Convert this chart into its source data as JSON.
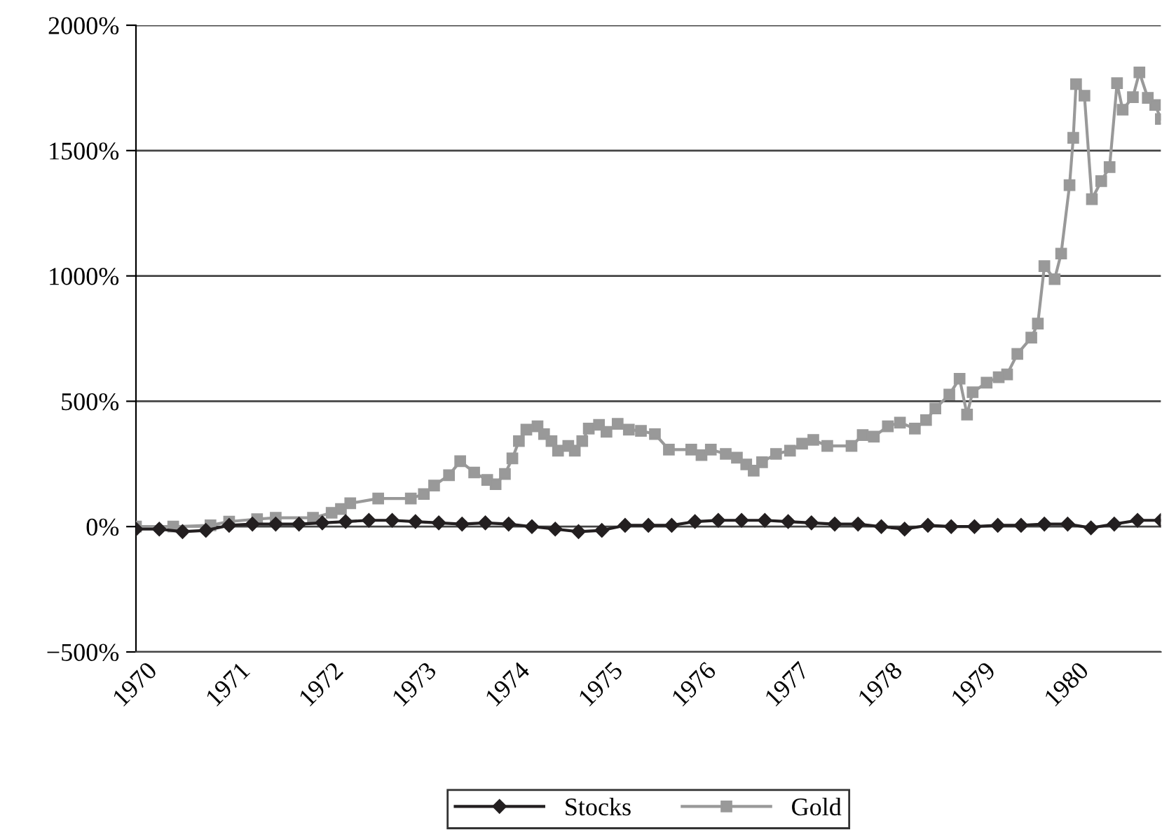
{
  "chart_data": {
    "type": "line",
    "xlim": [
      1970,
      1981
    ],
    "xticks": [
      1970,
      1971,
      1972,
      1973,
      1974,
      1975,
      1976,
      1977,
      1978,
      1979,
      1980
    ],
    "ylim": [
      -500,
      2000
    ],
    "yticks": [
      {
        "value": -500,
        "label": "−500%"
      },
      {
        "value": 0,
        "label": "0%"
      },
      {
        "value": 500,
        "label": "500%"
      },
      {
        "value": 1000,
        "label": "1000%"
      },
      {
        "value": 1500,
        "label": "1500%"
      },
      {
        "value": 2000,
        "label": "2000%"
      }
    ],
    "grid": "y",
    "legend": "bottom",
    "series": [
      {
        "name": "Stocks",
        "color": "#231f20",
        "marker": "diamond",
        "x": [
          1970,
          1970.25,
          1970.5,
          1970.75,
          1971,
          1971.25,
          1971.5,
          1971.75,
          1972,
          1972.25,
          1972.5,
          1972.75,
          1973,
          1973.25,
          1973.5,
          1973.75,
          1974,
          1974.25,
          1974.5,
          1974.75,
          1975,
          1975.25,
          1975.5,
          1975.75,
          1976,
          1976.25,
          1976.5,
          1976.75,
          1977,
          1977.25,
          1977.5,
          1977.75,
          1978,
          1978.25,
          1978.5,
          1978.75,
          1979,
          1979.25,
          1979.5,
          1979.75,
          1980,
          1980.25,
          1980.5,
          1980.75,
          1981
        ],
        "values": [
          -10,
          -10,
          -20,
          -15,
          5,
          10,
          10,
          10,
          15,
          20,
          25,
          25,
          20,
          15,
          10,
          15,
          10,
          0,
          -10,
          -20,
          -15,
          5,
          5,
          5,
          20,
          25,
          25,
          25,
          20,
          15,
          10,
          10,
          0,
          -10,
          5,
          0,
          0,
          5,
          5,
          10,
          10,
          -5,
          10,
          25,
          25
        ]
      },
      {
        "name": "Gold",
        "color": "#999999",
        "marker": "square",
        "x": [
          1970,
          1970.4,
          1970.8,
          1971,
          1971.3,
          1971.5,
          1971.9,
          1972.1,
          1972.2,
          1972.3,
          1972.6,
          1972.95,
          1973.09,
          1973.2,
          1973.36,
          1973.48,
          1973.63,
          1973.77,
          1973.86,
          1973.96,
          1974.04,
          1974.11,
          1974.19,
          1974.31,
          1974.38,
          1974.46,
          1974.53,
          1974.64,
          1974.71,
          1974.79,
          1974.86,
          1974.97,
          1975.05,
          1975.17,
          1975.29,
          1975.42,
          1975.57,
          1975.72,
          1975.96,
          1976.07,
          1976.17,
          1976.33,
          1976.45,
          1976.55,
          1976.63,
          1976.72,
          1976.87,
          1977.02,
          1977.15,
          1977.27,
          1977.42,
          1977.68,
          1977.8,
          1977.92,
          1978.07,
          1978.2,
          1978.36,
          1978.48,
          1978.58,
          1978.73,
          1978.84,
          1978.92,
          1978.98,
          1979.13,
          1979.26,
          1979.35,
          1979.46,
          1979.61,
          1979.68,
          1979.75,
          1979.86,
          1979.93,
          1980.02,
          1980.06,
          1980.09,
          1980.18,
          1980.26,
          1980.36,
          1980.45,
          1980.53,
          1980.59,
          1980.7,
          1980.77,
          1980.86,
          1980.94,
          1981
        ],
        "values": [
          0,
          0,
          5,
          20,
          30,
          35,
          35,
          55,
          70,
          93,
          112,
          112,
          130,
          164,
          205,
          261,
          216,
          186,
          169,
          210,
          272,
          341,
          387,
          400,
          369,
          341,
          303,
          322,
          303,
          341,
          391,
          406,
          378,
          410,
          387,
          382,
          369,
          307,
          307,
          285,
          307,
          290,
          275,
          248,
          223,
          257,
          290,
          303,
          331,
          346,
          322,
          322,
          365,
          359,
          400,
          415,
          391,
          425,
          471,
          527,
          590,
          447,
          536,
          574,
          596,
          607,
          689,
          754,
          810,
          1039,
          987,
          1089,
          1362,
          1551,
          1765,
          1719,
          1306,
          1378,
          1434,
          1769,
          1663,
          1713,
          1812,
          1710,
          1682,
          1626
        ]
      }
    ]
  }
}
